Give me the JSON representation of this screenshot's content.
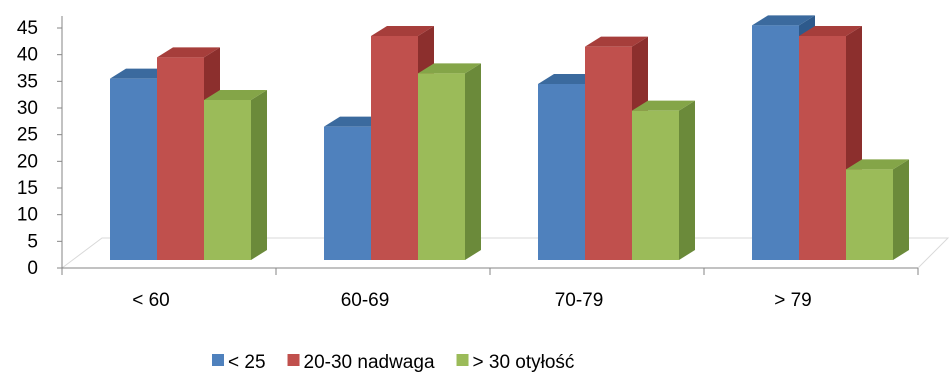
{
  "chart_data": {
    "type": "bar",
    "style": "3d-clustered-column",
    "categories": [
      "< 60",
      "60-69",
      "70-79",
      "> 79"
    ],
    "series": [
      {
        "name": "< 25",
        "values": [
          34,
          25,
          33,
          44
        ],
        "color": "#4F81BD",
        "color_side": "#2E5A8C",
        "color_top": "#3B6A9E"
      },
      {
        "name": "20-30 nadwaga",
        "values": [
          38,
          42,
          40,
          42
        ],
        "color": "#C0504D",
        "color_side": "#8C2F2D",
        "color_top": "#A63E3B"
      },
      {
        "name": "> 30 otyłość",
        "values": [
          30,
          35,
          28,
          17
        ],
        "color": "#9BBB59",
        "color_side": "#6B8A3A",
        "color_top": "#84A548"
      }
    ],
    "ylim": [
      0,
      45
    ],
    "yticks": [
      0,
      5,
      10,
      15,
      20,
      25,
      30,
      35,
      40,
      45
    ],
    "title": "",
    "xlabel": "",
    "ylabel": "",
    "grid": false,
    "legend_position": "bottom"
  }
}
